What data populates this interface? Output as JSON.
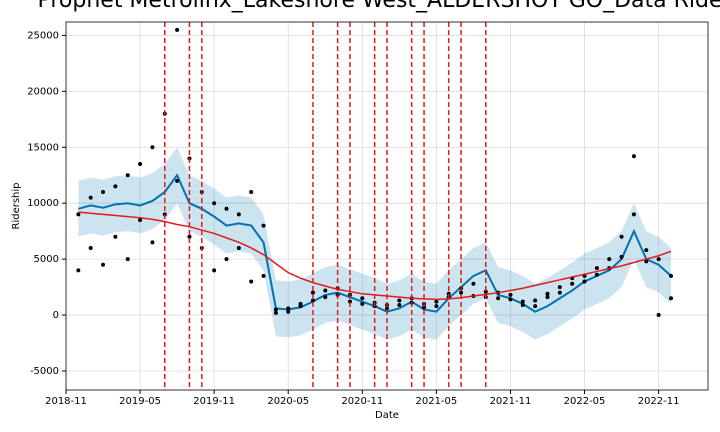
{
  "chart_data": {
    "type": "forecast",
    "title": "Prophet Metrolinx_Lakeshore West_ALDERSHOT GO_Data Ride",
    "xlabel": "Date",
    "ylabel": "Ridership",
    "xlim": [
      "2018-11",
      "2023-03"
    ],
    "ylim": [
      -6700,
      26200
    ],
    "xticks": [
      "2018-11",
      "2019-05",
      "2019-11",
      "2020-05",
      "2020-11",
      "2021-05",
      "2021-11",
      "2022-05",
      "2022-11"
    ],
    "yticks": [
      -5000,
      0,
      5000,
      10000,
      15000,
      20000,
      25000
    ],
    "grid": true,
    "forecast_color": "#0072B2",
    "trend_color": "#e41a1c",
    "point_color": "#000000",
    "x": [
      "2018-12",
      "2019-01",
      "2019-02",
      "2019-03",
      "2019-04",
      "2019-05",
      "2019-06",
      "2019-07",
      "2019-08",
      "2019-09",
      "2019-10",
      "2019-11",
      "2019-12",
      "2020-01",
      "2020-02",
      "2020-03",
      "2020-04",
      "2020-05",
      "2020-06",
      "2020-07",
      "2020-08",
      "2020-09",
      "2020-10",
      "2020-11",
      "2020-12",
      "2021-01",
      "2021-02",
      "2021-03",
      "2021-04",
      "2021-05",
      "2021-06",
      "2021-07",
      "2021-08",
      "2021-09",
      "2021-10",
      "2021-11",
      "2021-12",
      "2022-01",
      "2022-02",
      "2022-03",
      "2022-04",
      "2022-05",
      "2022-06",
      "2022-07",
      "2022-08",
      "2022-09",
      "2022-10",
      "2022-11",
      "2022-12"
    ],
    "yhat": [
      9500,
      9800,
      9600,
      9900,
      10000,
      9800,
      10200,
      11000,
      12500,
      10000,
      9500,
      8800,
      8000,
      8200,
      8000,
      6500,
      600,
      500,
      700,
      1200,
      1800,
      2000,
      1600,
      1200,
      800,
      300,
      600,
      1200,
      500,
      300,
      1500,
      2500,
      3500,
      4000,
      1800,
      1500,
      1000,
      300,
      800,
      1500,
      2200,
      3000,
      3500,
      4000,
      5000,
      7500,
      5000,
      4500,
      3500
    ],
    "yhat_upper": [
      12000,
      12300,
      12100,
      12400,
      12500,
      12300,
      12700,
      13500,
      15000,
      12500,
      12000,
      11300,
      10500,
      10700,
      10500,
      9000,
      3100,
      3000,
      3200,
      3700,
      4300,
      4500,
      4100,
      3700,
      3300,
      2800,
      3100,
      3700,
      3000,
      2800,
      4000,
      5000,
      6000,
      6500,
      4300,
      4000,
      3500,
      2800,
      3300,
      4000,
      4700,
      5500,
      6000,
      6500,
      7500,
      10000,
      7500,
      7000,
      6000
    ],
    "yhat_lower": [
      7000,
      7300,
      7100,
      7400,
      7500,
      7300,
      7700,
      8500,
      10000,
      7500,
      7000,
      6300,
      5500,
      5700,
      5500,
      4000,
      -1900,
      -2000,
      -1800,
      -1300,
      -700,
      -500,
      -900,
      -1300,
      -1700,
      -2200,
      -1900,
      -1300,
      -2000,
      -2200,
      -1000,
      0,
      1000,
      1500,
      -700,
      -1000,
      -1500,
      -2200,
      -1700,
      -1000,
      -300,
      500,
      1000,
      1500,
      2500,
      5000,
      2500,
      2000,
      1000
    ],
    "trend": [
      9200,
      9100,
      9000,
      8900,
      8800,
      8700,
      8550,
      8350,
      8100,
      7900,
      7600,
      7300,
      6900,
      6500,
      6000,
      5400,
      4600,
      3800,
      3300,
      2900,
      2600,
      2300,
      2100,
      1900,
      1800,
      1700,
      1600,
      1500,
      1450,
      1400,
      1450,
      1550,
      1700,
      1850,
      2000,
      2200,
      2400,
      2650,
      2900,
      3150,
      3400,
      3650,
      3900,
      4150,
      4400,
      4700,
      5000,
      5300,
      5700
    ],
    "changepoints": [
      "2019-07",
      "2019-09",
      "2019-10",
      "2020-07",
      "2020-09",
      "2020-10",
      "2020-12",
      "2021-01",
      "2021-03",
      "2021-04",
      "2021-06",
      "2021-07",
      "2021-09"
    ],
    "actual_x": [
      "2018-12",
      "2018-12",
      "2019-01",
      "2019-01",
      "2019-02",
      "2019-02",
      "2019-03",
      "2019-03",
      "2019-04",
      "2019-04",
      "2019-05",
      "2019-05",
      "2019-06",
      "2019-06",
      "2019-07",
      "2019-07",
      "2019-08",
      "2019-08",
      "2019-09",
      "2019-09",
      "2019-10",
      "2019-10",
      "2019-11",
      "2019-11",
      "2019-12",
      "2019-12",
      "2020-01",
      "2020-01",
      "2020-02",
      "2020-02",
      "2020-03",
      "2020-03",
      "2020-04",
      "2020-04",
      "2020-05",
      "2020-05",
      "2020-06",
      "2020-06",
      "2020-07",
      "2020-07",
      "2020-08",
      "2020-08",
      "2020-09",
      "2020-09",
      "2020-10",
      "2020-10",
      "2020-11",
      "2020-11",
      "2020-12",
      "2020-12",
      "2021-01",
      "2021-01",
      "2021-02",
      "2021-02",
      "2021-03",
      "2021-03",
      "2021-04",
      "2021-04",
      "2021-05",
      "2021-05",
      "2021-06",
      "2021-06",
      "2021-07",
      "2021-07",
      "2021-08",
      "2021-08",
      "2021-09",
      "2021-09",
      "2021-10",
      "2021-10",
      "2021-11",
      "2021-11",
      "2021-12",
      "2021-12",
      "2022-01",
      "2022-01",
      "2022-02",
      "2022-02",
      "2022-03",
      "2022-03",
      "2022-04",
      "2022-04",
      "2022-05",
      "2022-05",
      "2022-06",
      "2022-06",
      "2022-07",
      "2022-07",
      "2022-08",
      "2022-08",
      "2022-09",
      "2022-09",
      "2022-10",
      "2022-10",
      "2022-11",
      "2022-11",
      "2022-12",
      "2022-12"
    ],
    "actual_values": [
      9000,
      4000,
      10500,
      6000,
      11000,
      4500,
      11500,
      7000,
      12500,
      5000,
      13500,
      8500,
      15000,
      6500,
      18000,
      9000,
      25500,
      12000,
      14000,
      7000,
      11000,
      6000,
      10000,
      4000,
      9500,
      5000,
      9000,
      6000,
      11000,
      3000,
      8000,
      3500,
      500,
      200,
      300,
      600,
      800,
      1000,
      1300,
      2000,
      2200,
      1600,
      2400,
      1800,
      1800,
      1200,
      1500,
      1000,
      1100,
      800,
      600,
      900,
      900,
      1300,
      1500,
      1100,
      1000,
      700,
      800,
      1200,
      1600,
      1900,
      2400,
      2000,
      2800,
      1700,
      2100,
      1600,
      2000,
      1500,
      1800,
      1400,
      1200,
      900,
      800,
      1300,
      1600,
      1900,
      2000,
      2500,
      2800,
      3300,
      3500,
      3000,
      4200,
      3600,
      5000,
      4200,
      7000,
      5200,
      14200,
      9000,
      5800,
      4800,
      5000,
      0,
      3500,
      1500
    ]
  }
}
